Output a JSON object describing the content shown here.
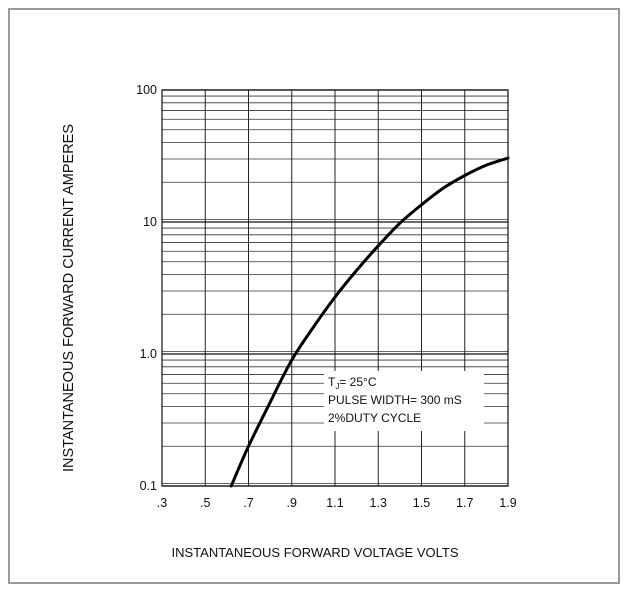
{
  "chart_data": {
    "type": "line",
    "xlabel": "INSTANTANEOUS FORWARD VOLTAGE VOLTS",
    "ylabel": "INSTANTANEOUS FORWARD CURRENT AMPERES",
    "xlim": [
      0.3,
      1.9
    ],
    "ylim": [
      0.1,
      100
    ],
    "yscale": "log",
    "grid": true,
    "x_ticks": [
      ".3",
      ".5",
      ".7",
      ".9",
      "1.1",
      "1.3",
      "1.5",
      "1.7",
      "1.9"
    ],
    "x_tick_values": [
      0.3,
      0.5,
      0.7,
      0.9,
      1.1,
      1.3,
      1.5,
      1.7,
      1.9
    ],
    "y_ticks": [
      "0.1",
      "1.0",
      "10",
      "100"
    ],
    "y_tick_values": [
      0.1,
      1,
      10,
      100
    ],
    "series": [
      {
        "x": [
          0.62,
          0.7,
          0.8,
          0.9,
          1.0,
          1.1,
          1.2,
          1.3,
          1.4,
          1.5,
          1.6,
          1.7,
          1.8,
          1.9
        ],
        "y": [
          0.1,
          0.2,
          0.43,
          0.9,
          1.6,
          2.7,
          4.3,
          6.6,
          9.8,
          13.5,
          18.0,
          22.5,
          27.0,
          30.5
        ]
      }
    ],
    "annotation": {
      "tj_prefix": "T",
      "tj_sub": "J",
      "tj_value": "= 25",
      "tj_unit": "°C",
      "line2": "PULSE WIDTH= 300 mS",
      "line3": "2%DUTY CYCLE"
    }
  }
}
